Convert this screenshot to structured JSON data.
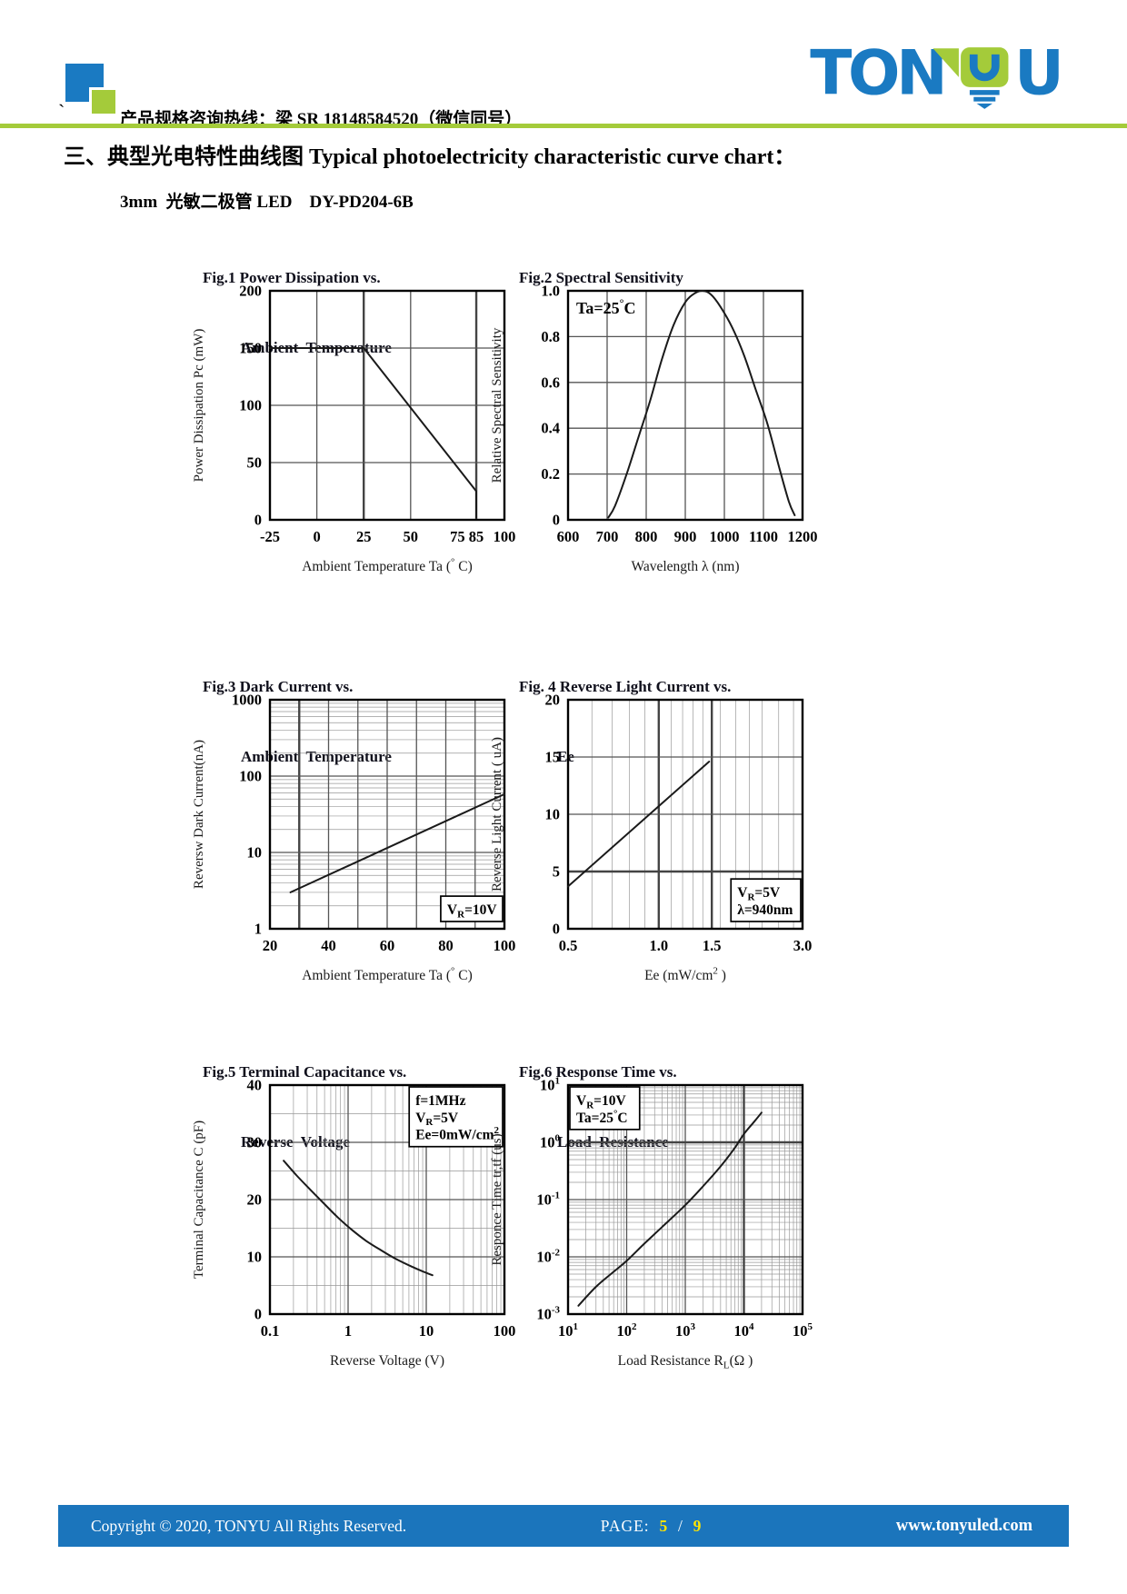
{
  "colors": {
    "logo_blue": "#1a7ac2",
    "logo_green": "#a4cb3a",
    "rule_green": "#a4cb3a",
    "footer_blue": "#1b75bc",
    "page_number_yellow": "#ffe400"
  },
  "header": {
    "hotline_line": "产品规格咨询热线：梁 SR 18148584520（微信同号）",
    "product_line": "3mm  光敏二极管 LED    DY-PD204-6B",
    "backtick": "`",
    "logo_ton": "TON",
    "logo_u": "U"
  },
  "title": "三、典型光电特性曲线图 Typical photoelectricity characteristic curve chart：",
  "footer": {
    "copyright": "Copyright © 2020, TONYU All Rights Reserved.",
    "page_label": "PAGE:",
    "page_current": "5",
    "page_sep": "/",
    "page_total": "9",
    "website": "www.tonyuled.com"
  },
  "chart_data": [
    {
      "id": "fig1",
      "type": "line",
      "caption1": "Fig.1 Power Dissipation vs.",
      "caption2": "Ambient  Temperature",
      "title": "Power Dissipation vs. Ambient Temperature",
      "x": {
        "scale": "linear",
        "min": -25,
        "max": 100,
        "label": "Ambient Temperature Ta (^{°} C)",
        "ticks": [
          {
            "v": -25,
            "l": "-25"
          },
          {
            "v": 0,
            "l": "0"
          },
          {
            "v": 25,
            "l": "25"
          },
          {
            "v": 50,
            "l": "50"
          },
          {
            "v": 75,
            "l": "75"
          },
          {
            "v": 85,
            "l": "85"
          },
          {
            "v": 100,
            "l": "100"
          }
        ],
        "grid": [
          0,
          25,
          50,
          85
        ],
        "heavy": [
          25,
          85
        ]
      },
      "y": {
        "scale": "linear",
        "min": 0,
        "max": 200,
        "label": "Power Dissipation Pc (mW)",
        "ticks": [
          {
            "v": 0,
            "l": "0"
          },
          {
            "v": 50,
            "l": "50"
          },
          {
            "v": 100,
            "l": "100"
          },
          {
            "v": 150,
            "l": "150"
          },
          {
            "v": 200,
            "l": "200"
          }
        ],
        "grid": [
          50,
          100,
          150
        ]
      },
      "series": [
        {
          "name": "Pc",
          "smooth": false,
          "points": [
            [
              -25,
              150
            ],
            [
              25,
              150
            ],
            [
              85,
              25
            ],
            [
              85,
              2
            ]
          ]
        }
      ]
    },
    {
      "id": "fig2",
      "type": "line",
      "caption1": "Fig.2 Spectral Sensitivity",
      "title": "Spectral Sensitivity",
      "x": {
        "scale": "linear",
        "min": 600,
        "max": 1200,
        "label": "Wavelength  λ  (nm)",
        "ticks": [
          {
            "v": 600,
            "l": "600"
          },
          {
            "v": 700,
            "l": "700"
          },
          {
            "v": 800,
            "l": "800"
          },
          {
            "v": 900,
            "l": "900"
          },
          {
            "v": 1000,
            "l": "1000"
          },
          {
            "v": 1100,
            "l": "1100"
          },
          {
            "v": 1200,
            "l": "1200"
          }
        ],
        "grid": [
          700,
          800,
          900,
          1000,
          1100
        ]
      },
      "y": {
        "scale": "linear",
        "min": 0,
        "max": 1.0,
        "label": "Relative Spectral Sensitivity",
        "ticks": [
          {
            "v": 0,
            "l": "0"
          },
          {
            "v": 0.2,
            "l": "0.2"
          },
          {
            "v": 0.4,
            "l": "0.4"
          },
          {
            "v": 0.6,
            "l": "0.6"
          },
          {
            "v": 0.8,
            "l": "0.8"
          },
          {
            "v": 1.0,
            "l": "1.0"
          }
        ],
        "grid": [
          0.2,
          0.4,
          0.6,
          0.8
        ]
      },
      "annotation": {
        "lines": [
          "Ta=25^{°}C"
        ],
        "corner": "tl",
        "box": false,
        "size": 18
      },
      "series": [
        {
          "name": "sensitivity",
          "smooth": true,
          "points": [
            [
              703,
              0.01
            ],
            [
              720,
              0.06
            ],
            [
              750,
              0.2
            ],
            [
              780,
              0.36
            ],
            [
              810,
              0.52
            ],
            [
              840,
              0.7
            ],
            [
              870,
              0.85
            ],
            [
              900,
              0.95
            ],
            [
              925,
              0.99
            ],
            [
              945,
              1.0
            ],
            [
              965,
              0.985
            ],
            [
              990,
              0.93
            ],
            [
              1020,
              0.84
            ],
            [
              1050,
              0.72
            ],
            [
              1080,
              0.57
            ],
            [
              1110,
              0.42
            ],
            [
              1140,
              0.23
            ],
            [
              1165,
              0.08
            ],
            [
              1180,
              0.02
            ]
          ]
        }
      ]
    },
    {
      "id": "fig3",
      "type": "line",
      "caption1": "Fig.3 Dark Current vs.",
      "caption2": "Ambient  Temperature",
      "title": "Dark Current vs. Ambient Temperature",
      "x": {
        "scale": "linear",
        "min": 20,
        "max": 100,
        "label": "Ambient Temperature Ta (^{°} C)",
        "ticks": [
          {
            "v": 20,
            "l": "20"
          },
          {
            "v": 40,
            "l": "40"
          },
          {
            "v": 60,
            "l": "60"
          },
          {
            "v": 80,
            "l": "80"
          },
          {
            "v": 100,
            "l": "100"
          }
        ],
        "grid": [
          30,
          40,
          50,
          60,
          70,
          80,
          90
        ],
        "heavy": [
          30
        ]
      },
      "y": {
        "scale": "log",
        "min": 1,
        "max": 1000,
        "label": "Reversw Dark Current(nA)",
        "ticks": [
          {
            "v": 1,
            "l": "1"
          },
          {
            "v": 10,
            "l": "10"
          },
          {
            "v": 100,
            "l": "100"
          },
          {
            "v": 1000,
            "l": "1000"
          }
        ],
        "grid": [
          10,
          100
        ]
      },
      "annotation": {
        "lines": [
          "V_{R}=10V"
        ],
        "corner": "br",
        "box": true
      },
      "series": [
        {
          "name": "dark-current",
          "smooth": false,
          "points": [
            [
              27,
              3
            ],
            [
              100,
              58
            ]
          ]
        }
      ]
    },
    {
      "id": "fig4",
      "type": "line",
      "caption1": "Fig. 4 Reverse Light Current vs.",
      "caption2": "Ee",
      "title": "Reverse Light Current vs. Ee",
      "x": {
        "scale": "log",
        "min": 0.5,
        "max": 3.0,
        "label": "Ee (mW/cm^{2} )",
        "ticks": [
          {
            "v": 0.5,
            "l": "0.5"
          },
          {
            "v": 1.0,
            "l": "1.0"
          },
          {
            "v": 1.5,
            "l": "1.5"
          },
          {
            "v": 3.0,
            "l": "3.0"
          }
        ],
        "grid": [
          1.0,
          1.5
        ],
        "heavy": [
          1.0,
          1.5
        ],
        "minor": [
          0.6,
          0.7,
          0.8,
          0.9,
          1.1,
          1.2,
          1.3,
          1.4,
          1.6,
          1.8,
          2.0,
          2.2,
          2.5,
          2.8
        ]
      },
      "y": {
        "scale": "linear",
        "min": 0,
        "max": 20,
        "label": "Reverse Light Current ( uA)",
        "ticks": [
          {
            "v": 0,
            "l": "0"
          },
          {
            "v": 5,
            "l": "5"
          },
          {
            "v": 10,
            "l": "10"
          },
          {
            "v": 15,
            "l": "15"
          },
          {
            "v": 20,
            "l": "20"
          }
        ],
        "grid": [
          5,
          10,
          15
        ],
        "heavy": [
          5
        ]
      },
      "annotation": {
        "lines": [
          "V_{R}=5V",
          "λ=940nm"
        ],
        "corner": "br",
        "box": true
      },
      "series": [
        {
          "name": "light-current",
          "smooth": false,
          "points": [
            [
              0.5,
              3.7
            ],
            [
              1.47,
              14.6
            ]
          ]
        }
      ]
    },
    {
      "id": "fig5",
      "type": "line",
      "caption1": "Fig.5 Terminal Capacitance vs.",
      "caption2": "Reverse  Voltage",
      "title": "Terminal Capacitance vs. Reverse Voltage",
      "x": {
        "scale": "log",
        "min": 0.1,
        "max": 100,
        "label": "Reverse Voltage (V)",
        "ticks": [
          {
            "v": 0.1,
            "l": "0.1"
          },
          {
            "v": 1,
            "l": "1"
          },
          {
            "v": 10,
            "l": "10"
          },
          {
            "v": 100,
            "l": "100"
          }
        ],
        "grid": [
          1,
          10
        ]
      },
      "y": {
        "scale": "linear",
        "min": 0,
        "max": 40,
        "label": "Terminal Capacitance C  (pF)",
        "ticks": [
          {
            "v": 0,
            "l": "0"
          },
          {
            "v": 10,
            "l": "10"
          },
          {
            "v": 20,
            "l": "20"
          },
          {
            "v": 30,
            "l": "30"
          },
          {
            "v": 40,
            "l": "40"
          }
        ],
        "grid": [
          10,
          20,
          30
        ],
        "minor": [
          5,
          15,
          25,
          35
        ],
        "heavy": [
          5
        ]
      },
      "annotation": {
        "lines": [
          "f=1MHz",
          "V_{R}=5V",
          "Ee=0mW/cm^{2}"
        ],
        "corner": "tr",
        "box": true
      },
      "series": [
        {
          "name": "capacitance",
          "smooth": true,
          "points": [
            [
              0.15,
              26.8
            ],
            [
              0.22,
              24.2
            ],
            [
              0.33,
              21.7
            ],
            [
              0.5,
              19.2
            ],
            [
              0.75,
              16.8
            ],
            [
              1.1,
              14.8
            ],
            [
              1.7,
              12.8
            ],
            [
              2.6,
              11.2
            ],
            [
              4,
              9.7
            ],
            [
              6.5,
              8.3
            ],
            [
              10,
              7.2
            ],
            [
              12,
              6.8
            ]
          ]
        }
      ]
    },
    {
      "id": "fig6",
      "type": "line",
      "caption1": "Fig.6 Response Time vs.",
      "caption2": "Load  Resistance",
      "title": "Response Time vs. Load Resistance",
      "x": {
        "scale": "log",
        "min": 10,
        "max": 100000,
        "label": "Load Resistance R_{L}(Ω )",
        "ticks": [
          {
            "v": 10,
            "l": "10^{1}"
          },
          {
            "v": 100,
            "l": "10^{2}"
          },
          {
            "v": 1000,
            "l": "10^{3}"
          },
          {
            "v": 10000,
            "l": "10^{4}"
          },
          {
            "v": 100000,
            "l": "10^{5}"
          }
        ],
        "grid": [
          100,
          1000,
          10000
        ],
        "heavy": [
          10000
        ]
      },
      "y": {
        "scale": "log",
        "min": 0.001,
        "max": 10,
        "label": "Responce Time tr,tf (us)",
        "ticks": [
          {
            "v": 0.001,
            "l": "10^{-3}"
          },
          {
            "v": 0.01,
            "l": "10^{-2}"
          },
          {
            "v": 0.1,
            "l": "10^{-1}"
          },
          {
            "v": 1,
            "l": "10^{0}"
          },
          {
            "v": 10,
            "l": "10^{1}"
          }
        ],
        "grid": [
          0.01,
          0.1,
          1
        ],
        "heavy": [
          1
        ]
      },
      "annotation": {
        "lines": [
          "V_{R}=10V",
          "Ta=25^{°}C"
        ],
        "corner": "tl",
        "box": true
      },
      "series": [
        {
          "name": "response-time",
          "smooth": true,
          "points": [
            [
              15,
              0.0014
            ],
            [
              30,
              0.003
            ],
            [
              60,
              0.0055
            ],
            [
              100,
              0.0085
            ],
            [
              200,
              0.017
            ],
            [
              400,
              0.033
            ],
            [
              1000,
              0.08
            ],
            [
              2000,
              0.17
            ],
            [
              4000,
              0.38
            ],
            [
              7000,
              0.8
            ],
            [
              10000,
              1.4
            ],
            [
              15000,
              2.3
            ],
            [
              20000,
              3.3
            ]
          ]
        }
      ]
    }
  ]
}
